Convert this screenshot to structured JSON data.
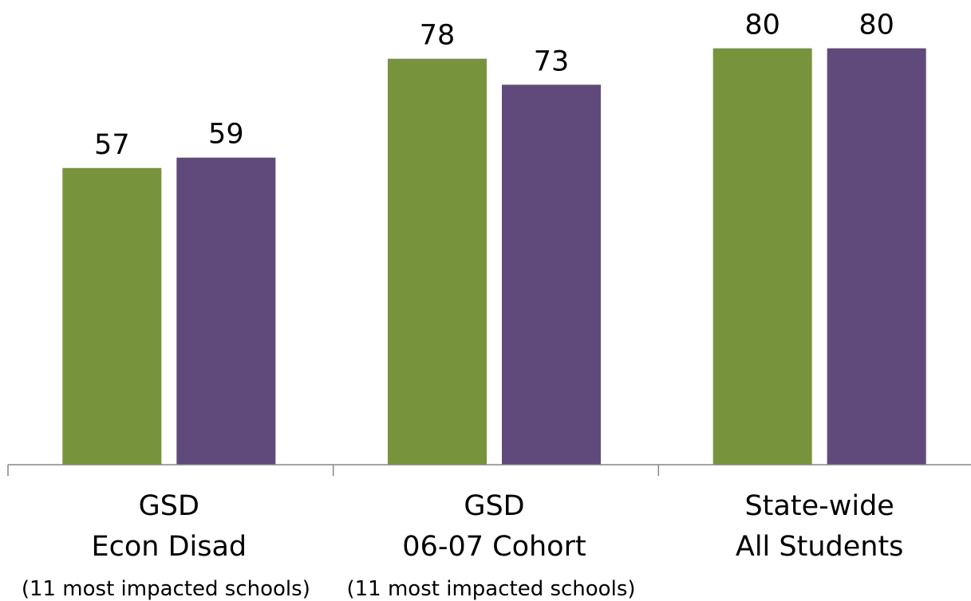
{
  "chart_data": {
    "type": "bar",
    "categories": [
      {
        "line1": "GSD",
        "line2": "Econ Disad",
        "note": "(11 most impacted schools)"
      },
      {
        "line1": "GSD",
        "line2": "06-07 Cohort",
        "note": "(11 most impacted schools)"
      },
      {
        "line1": "State-wide",
        "line2": "All Students",
        "note": ""
      }
    ],
    "series": [
      {
        "color": "#77933C",
        "values": [
          57,
          78,
          80
        ]
      },
      {
        "color": "#604A7B",
        "values": [
          59,
          73,
          80
        ]
      }
    ],
    "ylim": [
      0,
      100
    ],
    "data_labels": true,
    "grid": false,
    "legend": "none"
  }
}
